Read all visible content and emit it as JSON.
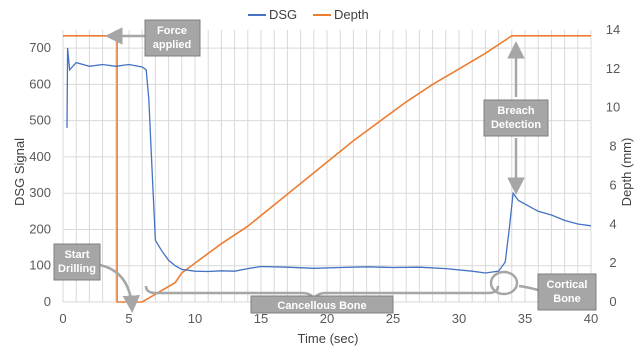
{
  "chart_data": {
    "type": "line",
    "title": "",
    "xlabel": "Time (sec)",
    "ylabel_left": "DSG Signal",
    "ylabel_right": "Depth (mm)",
    "xlim": [
      0,
      40
    ],
    "ylim_left": [
      0,
      750
    ],
    "ylim_right": [
      0,
      14
    ],
    "x_ticks": [
      "0",
      "5",
      "10",
      "15",
      "20",
      "25",
      "30",
      "35",
      "40"
    ],
    "y_ticks_left": [
      "0",
      "100",
      "200",
      "300",
      "400",
      "500",
      "600",
      "700"
    ],
    "y_ticks_right": [
      "0",
      "2",
      "4",
      "6",
      "8",
      "10",
      "12",
      "14"
    ],
    "grid": true,
    "legend_position": "top",
    "series": [
      {
        "name": "DSG",
        "axis": "left",
        "color": "#4472c4",
        "points": [
          [
            0.3,
            480
          ],
          [
            0.35,
            700
          ],
          [
            0.5,
            640
          ],
          [
            1,
            660
          ],
          [
            2,
            650
          ],
          [
            3,
            655
          ],
          [
            4,
            650
          ],
          [
            5,
            655
          ],
          [
            6,
            648
          ],
          [
            6.3,
            640
          ],
          [
            6.5,
            560
          ],
          [
            6.8,
            320
          ],
          [
            7,
            170
          ],
          [
            7.5,
            140
          ],
          [
            8,
            115
          ],
          [
            8.5,
            100
          ],
          [
            9,
            90
          ],
          [
            10,
            85
          ],
          [
            11,
            84
          ],
          [
            12,
            86
          ],
          [
            13,
            85
          ],
          [
            14,
            92
          ],
          [
            15,
            98
          ],
          [
            17,
            96
          ],
          [
            19,
            93
          ],
          [
            21,
            95
          ],
          [
            23,
            97
          ],
          [
            25,
            95
          ],
          [
            27,
            96
          ],
          [
            29,
            92
          ],
          [
            31,
            85
          ],
          [
            32,
            80
          ],
          [
            33,
            85
          ],
          [
            33.5,
            110
          ],
          [
            33.8,
            200
          ],
          [
            34.1,
            300
          ],
          [
            34.5,
            280
          ],
          [
            35,
            270
          ],
          [
            36,
            250
          ],
          [
            37,
            240
          ],
          [
            38,
            225
          ],
          [
            39,
            215
          ],
          [
            40,
            210
          ]
        ]
      },
      {
        "name": "Depth",
        "axis": "right",
        "color": "#ed7d31",
        "points": [
          [
            0,
            13.7
          ],
          [
            4.1,
            13.7
          ],
          [
            4.1,
            0
          ],
          [
            6,
            0
          ],
          [
            6.5,
            0.2
          ],
          [
            7.5,
            0.6
          ],
          [
            8.5,
            1.0
          ],
          [
            9,
            1.5
          ],
          [
            10,
            2.0
          ],
          [
            12,
            3.0
          ],
          [
            14,
            3.9
          ],
          [
            16,
            5.0
          ],
          [
            18,
            6.1
          ],
          [
            20,
            7.2
          ],
          [
            22,
            8.3
          ],
          [
            24,
            9.3
          ],
          [
            26,
            10.3
          ],
          [
            28,
            11.2
          ],
          [
            30,
            12.0
          ],
          [
            32,
            12.8
          ],
          [
            34,
            13.7
          ],
          [
            40,
            13.7
          ]
        ]
      }
    ],
    "annotations": [
      {
        "key": "force",
        "text": "Force applied"
      },
      {
        "key": "start",
        "text": "Start Drilling"
      },
      {
        "key": "cancellous",
        "text": "Cancellous Bone"
      },
      {
        "key": "breach",
        "text": "Breach Detection"
      },
      {
        "key": "cortical",
        "text": "Cortical Bone"
      }
    ]
  }
}
